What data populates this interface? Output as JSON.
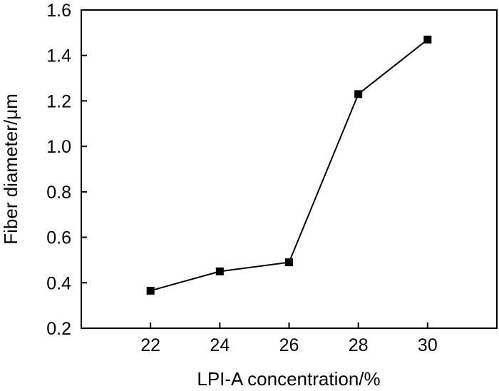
{
  "chart_data": {
    "type": "line",
    "xlabel": "LPI-A concentration/%",
    "ylabel": "Fiber diameter/μm",
    "x": [
      22,
      24,
      26,
      28,
      30
    ],
    "series": [
      {
        "values": [
          0.365,
          0.45,
          0.49,
          1.23,
          1.47
        ]
      }
    ],
    "xlim": [
      20,
      32
    ],
    "ylim": [
      0.2,
      1.6
    ],
    "xticks": [
      22,
      24,
      26,
      28,
      30
    ],
    "yticks": [
      0.2,
      0.4,
      0.6,
      0.8,
      1.0,
      1.2,
      1.4,
      1.6
    ],
    "xtick_labels": [
      "22",
      "24",
      "26",
      "28",
      "30"
    ],
    "ytick_labels": [
      "0.2",
      "0.4",
      "0.6",
      "0.8",
      "1.0",
      "1.2",
      "1.4",
      "1.6"
    ],
    "marker": "square",
    "line_color": "#000000",
    "marker_color": "#000000",
    "grid": false,
    "legend": "none"
  }
}
